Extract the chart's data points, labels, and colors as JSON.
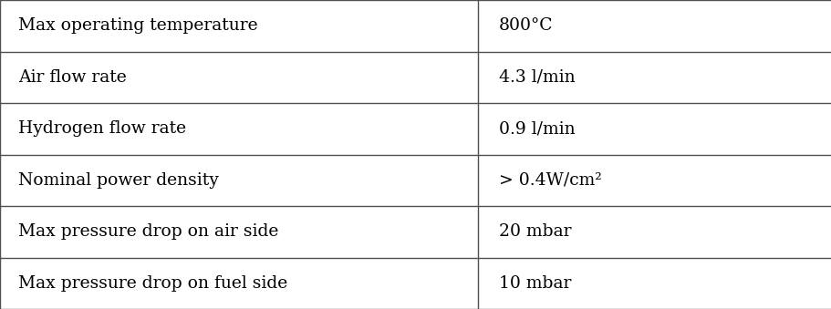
{
  "rows": [
    [
      "Max operating temperature",
      "800°C"
    ],
    [
      "Air flow rate",
      "4.3 l/min"
    ],
    [
      "Hydrogen flow rate",
      "0.9 l/min"
    ],
    [
      "Nominal power density",
      "> 0.4W/cm²"
    ],
    [
      "Max pressure drop on air side",
      "20 mbar"
    ],
    [
      "Max pressure drop on fuel side",
      "10 mbar"
    ]
  ],
  "col_split": 0.575,
  "border_color": "#505050",
  "background_color": "#ffffff",
  "text_color": "#000000",
  "font_size": 13.5,
  "line_width": 1.0
}
